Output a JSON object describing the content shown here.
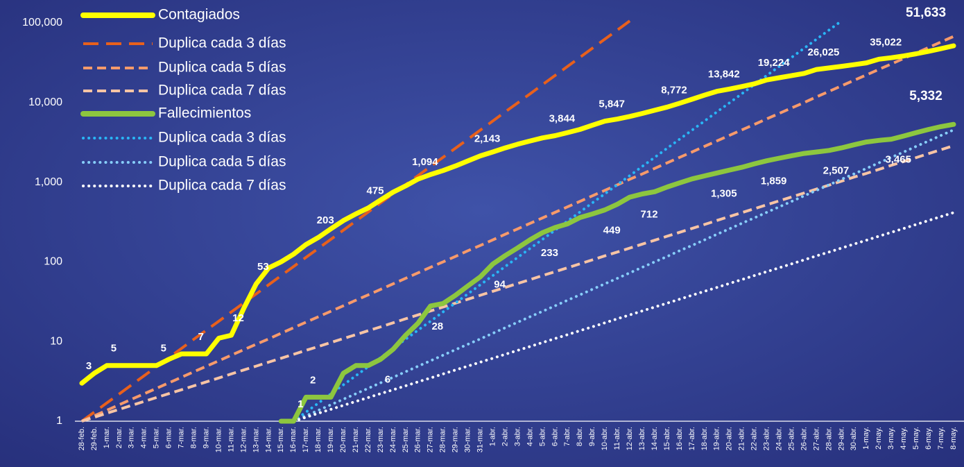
{
  "chart_data": {
    "type": "line",
    "log_scale": true,
    "ylim": [
      1,
      100000
    ],
    "yticks": [
      1,
      10,
      100,
      {
        "value": 1000,
        "label": "1,000"
      },
      {
        "value": 10000,
        "label": "10,000"
      },
      {
        "value": 100000,
        "label": "100,000"
      }
    ],
    "legend": "top-left",
    "categories": [
      "28-feb.",
      "29-feb.",
      "1-mar.",
      "2-mar.",
      "3-mar.",
      "4-mar.",
      "5-mar.",
      "6-mar.",
      "7-mar.",
      "8-mar.",
      "9-mar.",
      "10-mar.",
      "11-mar.",
      "12-mar.",
      "13-mar.",
      "14-mar.",
      "15-mar.",
      "16-mar.",
      "17-mar.",
      "18-mar.",
      "19-mar.",
      "20-mar.",
      "21-mar.",
      "22-mar.",
      "23-mar.",
      "24-mar.",
      "25-mar.",
      "26-mar.",
      "27-mar.",
      "28-mar.",
      "29-mar.",
      "30-mar.",
      "31-mar.",
      "1-abr.",
      "2-abr.",
      "3-abr.",
      "4-abr.",
      "5-abr.",
      "6-abr.",
      "7-abr.",
      "8-abr.",
      "9-abr.",
      "10-abr.",
      "11-abr.",
      "12-abr.",
      "13-abr.",
      "14-abr.",
      "15-abr.",
      "16-abr.",
      "17-abr.",
      "18-abr.",
      "19-abr.",
      "20-abr.",
      "21-abr.",
      "22-abr.",
      "23-abr.",
      "24-abr.",
      "25-abr.",
      "26-abr.",
      "27-abr.",
      "28-abr.",
      "29-abr.",
      "30-abr.",
      "1-may.",
      "2-may.",
      "3-may.",
      "4-may.",
      "5-may.",
      "6-may.",
      "7-may.",
      "8-may."
    ],
    "series": [
      {
        "name": "Contagiados",
        "color": "#ffff00",
        "line_style": "solid",
        "values": [
          3,
          4,
          5,
          5,
          5,
          5,
          5,
          6,
          7,
          7,
          7,
          11,
          12,
          26,
          53,
          84,
          100,
          125,
          165,
          203,
          260,
          330,
          400,
          475,
          600,
          750,
          900,
          1094,
          1250,
          1400,
          1600,
          1850,
          2143,
          2400,
          2700,
          3000,
          3300,
          3600,
          3844,
          4200,
          4600,
          5200,
          5847,
          6200,
          6700,
          7300,
          8000,
          8772,
          9800,
          11000,
          12400,
          13842,
          14800,
          15900,
          17200,
          19224,
          20500,
          21800,
          23200,
          26025,
          27200,
          28500,
          29900,
          31500,
          35022,
          36500,
          38500,
          41000,
          44000,
          47500,
          51633
        ],
        "value_labels": [
          "3",
          null,
          "5",
          null,
          null,
          null,
          "5",
          null,
          null,
          "7",
          null,
          null,
          "12",
          null,
          "53",
          null,
          null,
          null,
          null,
          "203",
          null,
          null,
          null,
          "475",
          null,
          null,
          null,
          "1,094",
          null,
          null,
          null,
          null,
          "2,143",
          null,
          null,
          null,
          null,
          null,
          "3,844",
          null,
          null,
          null,
          "5,847",
          null,
          null,
          null,
          null,
          "8,772",
          null,
          null,
          null,
          "13,842",
          null,
          null,
          null,
          "19,224",
          null,
          null,
          null,
          "26,025",
          null,
          null,
          null,
          null,
          "35,022",
          null,
          null,
          null,
          null,
          null,
          "51,633"
        ]
      },
      {
        "name": "Duplica cada 3 días",
        "color": "#e8601c",
        "line_style": "long-dashed",
        "values": [
          1,
          1.3,
          1.69,
          2.2,
          2.86,
          3.72,
          4.84,
          6.3,
          8.2,
          10.7,
          13.9,
          18,
          23.5,
          30.5,
          39.7,
          51.6,
          67.2,
          87.4,
          114,
          148,
          192,
          250,
          325,
          423,
          551,
          716,
          932,
          1210,
          1580,
          2050,
          2670,
          3470,
          4510,
          5870,
          7640,
          9930,
          12900,
          16800,
          21900,
          28400,
          37000,
          48100,
          62600,
          81400,
          106000,
          null,
          null,
          null,
          null,
          null,
          null,
          null,
          null,
          null,
          null,
          null,
          null,
          null,
          null,
          null,
          null,
          null,
          null,
          null,
          null,
          null,
          null,
          null,
          null,
          null,
          null
        ]
      },
      {
        "name": "Duplica cada 5 días",
        "color": "#f79a6b",
        "line_style": "dashed",
        "values": [
          1,
          1.17,
          1.37,
          1.61,
          1.89,
          2.21,
          2.59,
          3.04,
          3.56,
          4.18,
          4.9,
          5.74,
          6.73,
          7.89,
          9.25,
          10.8,
          12.7,
          14.9,
          17.5,
          20.5,
          24,
          28.1,
          33,
          38.6,
          45.3,
          53.1,
          62.2,
          72.9,
          85.5,
          100,
          117,
          138,
          161,
          189,
          222,
          260,
          305,
          357,
          419,
          491,
          575,
          675,
          791,
          927,
          1090,
          1270,
          1490,
          1750,
          2050,
          2400,
          2820,
          3300,
          3870,
          4540,
          5320,
          6240,
          7310,
          8570,
          10000,
          11800,
          13800,
          16200,
          19000,
          22200,
          26100,
          30500,
          35800,
          42000,
          49200,
          57700,
          67600
        ]
      },
      {
        "name": "Duplica cada 7 días",
        "color": "#f7c4a5",
        "line_style": "dashed",
        "values": [
          1,
          1.12,
          1.26,
          1.41,
          1.58,
          1.77,
          1.98,
          2.22,
          2.48,
          2.78,
          3.12,
          3.49,
          3.92,
          4.39,
          4.92,
          5.51,
          6.17,
          6.92,
          7.75,
          8.68,
          9.73,
          10.9,
          12.2,
          13.7,
          15.3,
          17.2,
          19.3,
          21.6,
          24.2,
          27.1,
          30.3,
          34,
          38.1,
          42.7,
          47.8,
          53.6,
          60,
          67.3,
          75.4,
          84.4,
          94.6,
          106,
          119,
          133,
          149,
          167,
          187,
          210,
          235,
          263,
          295,
          331,
          371,
          415,
          465,
          521,
          584,
          654,
          733,
          821,
          920,
          1030,
          1160,
          1290,
          1450,
          1630,
          1820,
          2040,
          2290,
          2560,
          2870
        ]
      },
      {
        "name": "Fallecimientos",
        "color": "#8dc63f",
        "line_style": "solid",
        "values": [
          null,
          null,
          null,
          null,
          null,
          null,
          null,
          null,
          null,
          null,
          null,
          null,
          null,
          null,
          null,
          null,
          1,
          1,
          2,
          2,
          2,
          4,
          5,
          5,
          6,
          8,
          12,
          17,
          28,
          30,
          38,
          50,
          65,
          94,
          120,
          150,
          190,
          233,
          270,
          300,
          360,
          400,
          449,
          530,
          650,
          712,
          760,
          870,
          980,
          1100,
          1200,
          1305,
          1420,
          1540,
          1700,
          1859,
          2000,
          2150,
          2300,
          2400,
          2507,
          2700,
          2950,
          3200,
          3350,
          3465,
          3800,
          4200,
          4600,
          5000,
          5332
        ],
        "value_labels": [
          null,
          null,
          null,
          null,
          null,
          null,
          null,
          null,
          null,
          null,
          null,
          null,
          null,
          null,
          null,
          null,
          null,
          "1",
          "2",
          null,
          null,
          null,
          null,
          null,
          "6",
          null,
          null,
          null,
          "28",
          null,
          null,
          null,
          null,
          "94",
          null,
          null,
          null,
          "233",
          null,
          null,
          null,
          null,
          "449",
          null,
          null,
          "712",
          null,
          null,
          null,
          null,
          null,
          "1,305",
          null,
          null,
          null,
          "1,859",
          null,
          null,
          null,
          null,
          "2,507",
          null,
          null,
          null,
          null,
          "3,465",
          null,
          null,
          null,
          null,
          "5,332"
        ]
      },
      {
        "name": "Duplica cada 3 días",
        "color": "#29b6f6",
        "line_style": "dotted",
        "values": [
          null,
          null,
          null,
          null,
          null,
          null,
          null,
          null,
          null,
          null,
          null,
          null,
          null,
          null,
          null,
          null,
          null,
          1,
          1.3,
          1.69,
          2.2,
          2.86,
          3.72,
          4.84,
          6.3,
          8.2,
          10.7,
          13.9,
          18,
          23.5,
          30.5,
          39.7,
          51.6,
          67.2,
          87.4,
          114,
          148,
          192,
          250,
          325,
          423,
          551,
          716,
          932,
          1210,
          1580,
          2050,
          2670,
          3470,
          4510,
          5870,
          7640,
          9930,
          12900,
          16800,
          21900,
          28400,
          37000,
          48100,
          62600,
          81400,
          106000,
          null,
          null,
          null,
          null,
          null,
          null,
          null,
          null,
          null
        ]
      },
      {
        "name": "Duplica cada 5 días",
        "color": "#87cefa",
        "line_style": "dotted",
        "values": [
          null,
          null,
          null,
          null,
          null,
          null,
          null,
          null,
          null,
          null,
          null,
          null,
          null,
          null,
          null,
          null,
          null,
          1,
          1.17,
          1.37,
          1.61,
          1.89,
          2.21,
          2.59,
          3.04,
          3.56,
          4.18,
          4.9,
          5.74,
          6.73,
          7.89,
          9.25,
          10.8,
          12.7,
          14.9,
          17.5,
          20.5,
          24,
          28.1,
          33,
          38.6,
          45.3,
          53.1,
          62.2,
          72.9,
          85.5,
          100,
          117,
          138,
          161,
          189,
          222,
          260,
          305,
          357,
          419,
          491,
          575,
          675,
          791,
          927,
          1090,
          1270,
          1490,
          1750,
          2050,
          2400,
          2820,
          3300,
          3870,
          4540
        ]
      },
      {
        "name": "Duplica cada 7 días",
        "color": "#ffffff",
        "line_style": "dotted",
        "values": [
          null,
          null,
          null,
          null,
          null,
          null,
          null,
          null,
          null,
          null,
          null,
          null,
          null,
          null,
          null,
          null,
          null,
          1,
          1.12,
          1.26,
          1.41,
          1.58,
          1.77,
          1.98,
          2.22,
          2.48,
          2.78,
          3.12,
          3.49,
          3.92,
          4.39,
          4.92,
          5.51,
          6.17,
          6.92,
          7.75,
          8.68,
          9.73,
          10.9,
          12.2,
          13.7,
          15.3,
          17.2,
          19.3,
          21.6,
          24.2,
          27.1,
          30.3,
          34,
          38.1,
          42.7,
          47.8,
          53.6,
          60,
          67.3,
          75.4,
          84.4,
          94.6,
          106,
          119,
          133,
          149,
          167,
          187,
          210,
          235,
          263,
          295,
          331,
          371,
          415
        ]
      }
    ]
  }
}
